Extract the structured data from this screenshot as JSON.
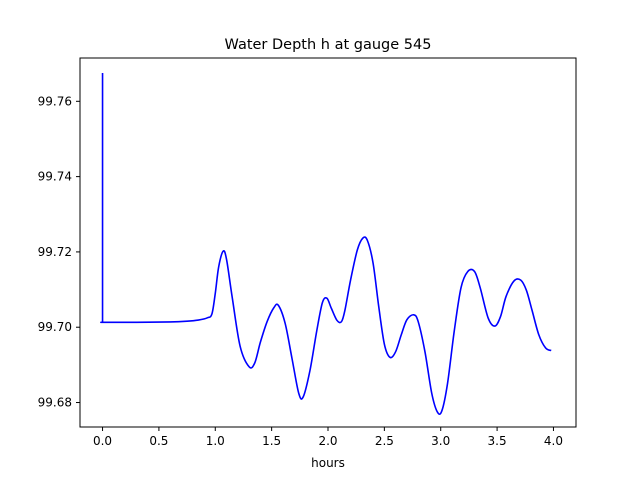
{
  "chart_data": {
    "type": "line",
    "title": "Water Depth h at gauge 545",
    "xlabel": "hours",
    "ylabel": "",
    "xlim": [
      -0.2,
      4.2
    ],
    "ylim": [
      99.6735,
      99.7715
    ],
    "xticks": [
      0.0,
      0.5,
      1.0,
      1.5,
      2.0,
      2.5,
      3.0,
      3.5,
      4.0
    ],
    "xtick_labels": [
      "0.0",
      "0.5",
      "1.0",
      "1.5",
      "2.0",
      "2.5",
      "3.0",
      "3.5",
      "4.0"
    ],
    "yticks": [
      99.68,
      99.7,
      99.72,
      99.74,
      99.76
    ],
    "ytick_labels": [
      "99.68",
      "99.70",
      "99.72",
      "99.74",
      "99.76"
    ],
    "grid": false,
    "series": [
      {
        "color": "#0000ff",
        "x": [
          0.0,
          0.0,
          0.01,
          0.3,
          0.6,
          0.75,
          0.85,
          0.93,
          0.97,
          1.0,
          1.03,
          1.07,
          1.1,
          1.15,
          1.22,
          1.3,
          1.35,
          1.4,
          1.46,
          1.52,
          1.56,
          1.62,
          1.68,
          1.74,
          1.78,
          1.84,
          1.9,
          1.95,
          1.99,
          2.03,
          2.08,
          2.12,
          2.15,
          2.2,
          2.26,
          2.31,
          2.35,
          2.4,
          2.45,
          2.5,
          2.55,
          2.6,
          2.65,
          2.7,
          2.76,
          2.8,
          2.86,
          2.92,
          2.97,
          3.01,
          3.06,
          3.12,
          3.18,
          3.24,
          3.3,
          3.35,
          3.42,
          3.48,
          3.53,
          3.58,
          3.65,
          3.71,
          3.76,
          3.81,
          3.87,
          3.93,
          3.98
        ],
        "y": [
          99.7675,
          99.7013,
          99.7013,
          99.7013,
          99.7014,
          99.7016,
          99.7019,
          99.7025,
          99.7035,
          99.709,
          99.716,
          99.7202,
          99.718,
          99.708,
          99.695,
          99.6895,
          99.6905,
          99.696,
          99.7015,
          99.7052,
          99.7058,
          99.701,
          99.6918,
          99.6825,
          99.6815,
          99.6885,
          99.699,
          99.7065,
          99.7077,
          99.705,
          99.7018,
          99.7015,
          99.7045,
          99.7125,
          99.7205,
          99.7237,
          99.723,
          99.717,
          99.7055,
          99.6955,
          99.692,
          99.6935,
          99.698,
          99.702,
          99.7033,
          99.7015,
          99.6935,
          99.6825,
          99.6775,
          99.6778,
          99.685,
          99.699,
          99.7105,
          99.7148,
          99.7148,
          99.7105,
          99.7025,
          99.7003,
          99.7028,
          99.7082,
          99.7123,
          99.7125,
          99.7098,
          99.7045,
          99.698,
          99.6945,
          99.6938
        ]
      }
    ]
  }
}
